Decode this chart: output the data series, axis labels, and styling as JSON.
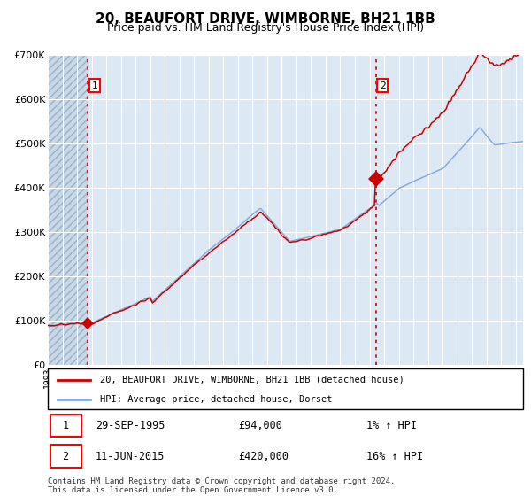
{
  "title": "20, BEAUFORT DRIVE, WIMBORNE, BH21 1BB",
  "subtitle": "Price paid vs. HM Land Registry's House Price Index (HPI)",
  "title_fontsize": 11,
  "subtitle_fontsize": 9,
  "legend_line1": "20, BEAUFORT DRIVE, WIMBORNE, BH21 1BB (detached house)",
  "legend_line2": "HPI: Average price, detached house, Dorset",
  "sale1_date": "29-SEP-1995",
  "sale1_price": 94000,
  "sale1_label": "1% ↑ HPI",
  "sale2_date": "11-JUN-2015",
  "sale2_price": 420000,
  "sale2_label": "16% ↑ HPI",
  "footnote": "Contains HM Land Registry data © Crown copyright and database right 2024.\nThis data is licensed under the Open Government Licence v3.0.",
  "hpi_color": "#88aadd",
  "price_color": "#cc0000",
  "bg_color": "#dce9f5",
  "grid_color": "#ffffff",
  "ylim_max": 700000,
  "x_start_year": 1993.0,
  "x_end_year": 2025.5,
  "sale1_x": 1995.75,
  "sale2_x": 2015.44
}
